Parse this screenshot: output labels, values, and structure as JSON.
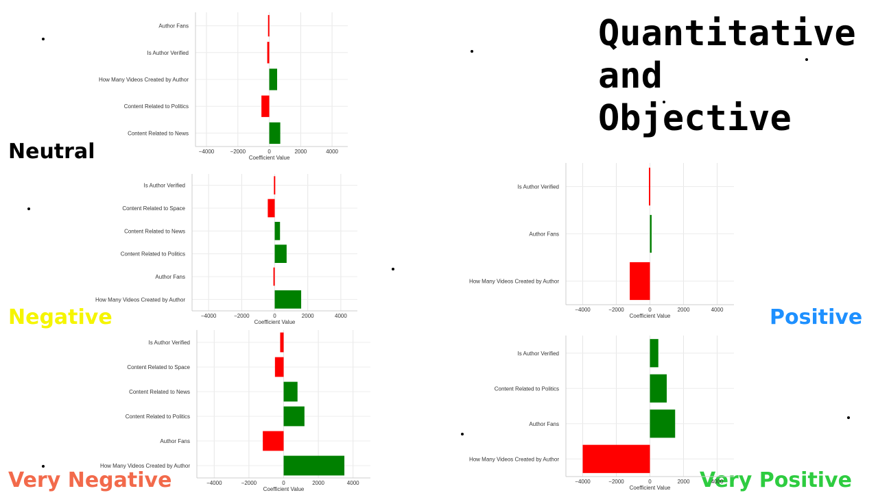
{
  "title_lines": [
    "Quantitative",
    "and",
    "Objective"
  ],
  "labels": {
    "neutral": "Neutral",
    "negative": "Negative",
    "positive": "Positive",
    "very_negative": "Very Negative",
    "very_positive": "Very Positive"
  },
  "colors": {
    "neutral": "#000000",
    "negative": "#f5f500",
    "positive": "#1e90ff",
    "very_negative": "#f26a4b",
    "very_positive": "#2ecc40",
    "bar_positive": "#008000",
    "bar_negative": "#ff0000"
  },
  "chart_data": [
    {
      "id": "neutral",
      "type": "bar",
      "orientation": "horizontal",
      "categories": [
        "Author Fans",
        "Is Author Verified",
        "How Many Videos Created by Author",
        "Content Related to Politics",
        "Content Related to News"
      ],
      "values": [
        -80,
        -130,
        500,
        -500,
        700
      ],
      "xlabel": "Coefficient Value",
      "xlim": [
        -4700,
        5000
      ],
      "xticks": [
        -4000,
        -2000,
        0,
        2000,
        4000
      ],
      "xtick_labels": [
        "−4000",
        "−2000",
        "0",
        "2000",
        "4000"
      ],
      "grid": true
    },
    {
      "id": "negative",
      "type": "bar",
      "orientation": "horizontal",
      "categories": [
        "Is Author Verified",
        "Content Related to Space",
        "Content Related to News",
        "Content Related to Politics",
        "Author Fans",
        "How Many Videos Created by Author"
      ],
      "values": [
        -50,
        -420,
        320,
        720,
        -80,
        1600
      ],
      "xlabel": "Coefficient Value",
      "xlim": [
        -5000,
        5000
      ],
      "xticks": [
        -4000,
        -2000,
        0,
        2000,
        4000
      ],
      "xtick_labels": [
        "−4000",
        "−2000",
        "0",
        "2000",
        "4000"
      ],
      "grid": true
    },
    {
      "id": "positive",
      "type": "bar",
      "orientation": "horizontal",
      "categories": [
        "Is Author Verified",
        "Author Fans",
        "How Many Videos Created by Author"
      ],
      "values": [
        -60,
        100,
        -1200
      ],
      "xlabel": "Coefficient Value",
      "xlim": [
        -5000,
        5000
      ],
      "xticks": [
        -4000,
        -2000,
        0,
        2000,
        4000
      ],
      "xtick_labels": [
        "−4000",
        "−2000",
        "0",
        "2000",
        "4000"
      ],
      "grid": true
    },
    {
      "id": "very_negative",
      "type": "bar",
      "orientation": "horizontal",
      "categories": [
        "Is Author Verified",
        "Content Related to Space",
        "Content Related to News",
        "Content Related to Politics",
        "Author Fans",
        "How Many Videos Created by Author"
      ],
      "values": [
        -200,
        -500,
        800,
        1200,
        -1200,
        3500
      ],
      "xlabel": "Coefficient Value",
      "xlim": [
        -5000,
        5000
      ],
      "xticks": [
        -4000,
        -2000,
        0,
        2000,
        4000
      ],
      "xtick_labels": [
        "−4000",
        "−2000",
        "0",
        "2000",
        "4000"
      ],
      "grid": true
    },
    {
      "id": "very_positive",
      "type": "bar",
      "orientation": "horizontal",
      "categories": [
        "Is Author Verified",
        "Content Related to Politics",
        "Author Fans",
        "How Many Videos Created by Author"
      ],
      "values": [
        500,
        1000,
        1500,
        -4000
      ],
      "xlabel": "Coefficient Value",
      "xlim": [
        -5000,
        5000
      ],
      "xticks": [
        -4000,
        -2000,
        0,
        2000,
        4000
      ],
      "xtick_labels": [
        "−4000",
        "−2000",
        "0",
        "2000",
        "4000"
      ],
      "grid": true
    }
  ]
}
